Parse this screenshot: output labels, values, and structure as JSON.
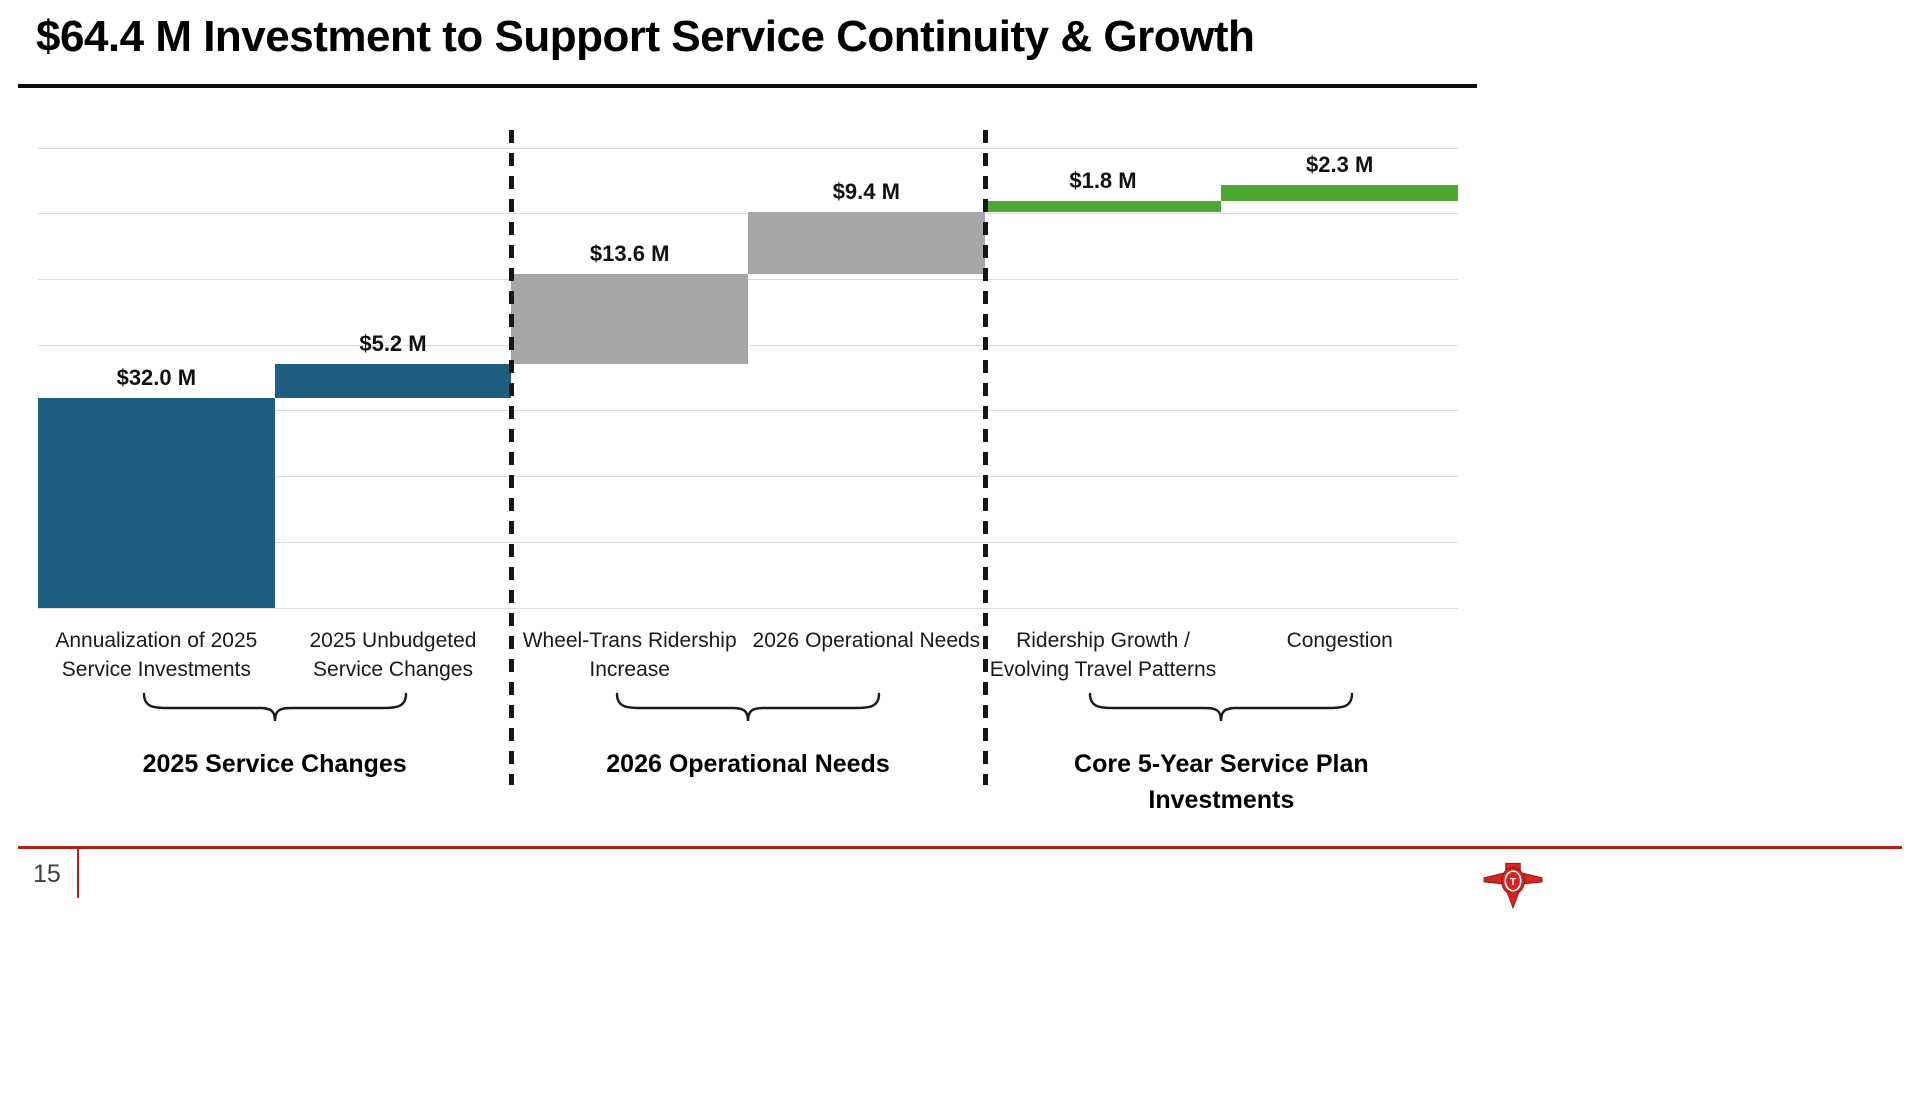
{
  "title": "$64.4 M Investment to Support Service Continuity & Growth",
  "page_number": "15",
  "colors": {
    "bar_blue": "#1E5F7F",
    "bar_gray": "#A6A6A6",
    "bar_green": "#4EA72E",
    "accent_red": "#B02418",
    "logo_red": "#D6251F"
  },
  "chart_data": {
    "type": "bar",
    "subtype": "waterfall",
    "title": "$64.4 M Investment to Support Service Continuity & Growth",
    "xlabel": "",
    "ylabel": "",
    "ylim": [
      0,
      70
    ],
    "gridline_step": 10,
    "grid": true,
    "legend": "none",
    "bars": [
      {
        "label": "Annualization of 2025 Service Investments",
        "label_lines": [
          "Annualization of 2025",
          "Service Investments"
        ],
        "value": 32.0,
        "start": 0.0,
        "end": 32.0,
        "value_label": "$32.0 M",
        "color": "#1E5F7F"
      },
      {
        "label": "2025 Unbudgeted Service Changes",
        "label_lines": [
          "2025 Unbudgeted",
          "Service Changes"
        ],
        "value": 5.2,
        "start": 32.0,
        "end": 37.2,
        "value_label": "$5.2 M",
        "color": "#1E5F7F"
      },
      {
        "label": "Wheel-Trans Ridership Increase",
        "label_lines": [
          "Wheel-Trans Ridership",
          "Increase"
        ],
        "value": 13.6,
        "start": 37.2,
        "end": 50.8,
        "value_label": "$13.6 M",
        "color": "#A6A6A6"
      },
      {
        "label": "2026 Operational Needs",
        "label_lines": [
          "2026 Operational Needs"
        ],
        "value": 9.4,
        "start": 50.8,
        "end": 60.2,
        "value_label": "$9.4 M",
        "color": "#A6A6A6"
      },
      {
        "label": "Ridership Growth / Evolving Travel Patterns",
        "label_lines": [
          "Ridership Growth /",
          "Evolving Travel Patterns"
        ],
        "value": 1.8,
        "start": 60.2,
        "end": 62.0,
        "value_label": "$1.8 M",
        "color": "#4EA72E"
      },
      {
        "label": "Congestion",
        "label_lines": [
          "Congestion"
        ],
        "value": 2.3,
        "start": 62.0,
        "end": 64.3,
        "value_label": "$2.3 M",
        "color": "#4EA72E"
      }
    ],
    "groups": [
      {
        "label": "2025 Service Changes",
        "label_lines": [
          "2025 Service Changes"
        ],
        "span": [
          0,
          1
        ]
      },
      {
        "label": "2026 Operational Needs",
        "label_lines": [
          "2026 Operational Needs"
        ],
        "span": [
          2,
          3
        ]
      },
      {
        "label": "Core 5-Year Service Plan Investments",
        "label_lines": [
          "Core 5-Year Service Plan",
          "Investments"
        ],
        "span": [
          4,
          5
        ]
      }
    ],
    "separators_after_bars": [
      2,
      4
    ]
  }
}
